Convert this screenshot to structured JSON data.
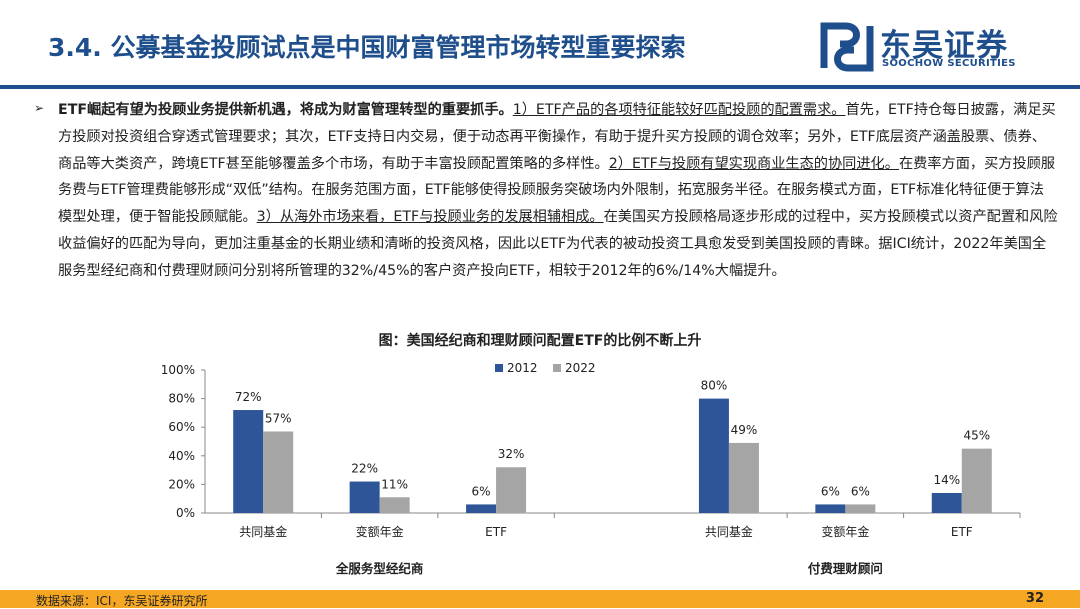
{
  "header": {
    "title": "3.4. 公募基金投顾试点是中国财富管理市场转型重要探索",
    "brand_cn": "东吴证券",
    "brand_en": "SOOCHOW SECURITIES"
  },
  "body": {
    "bullet": "➢",
    "p_lead": "ETF崛起有望为投顾业务提供新机遇，将成为财富管理转型的重要抓手。",
    "p_h1": "1）ETF产品的各项特征能较好匹配投顾的配置需求。",
    "p_t1": "首先，ETF持仓每日披露，满足买方投顾对投资组合穿透式管理要求；其次，ETF支持日内交易，便于动态再平衡操作，有助于提升买方投顾的调仓效率；另外，ETF底层资产涵盖股票、债券、商品等大类资产，跨境ETF甚至能够覆盖多个市场，有助于丰富投顾配置策略的多样性。",
    "p_h2": "2）ETF与投顾有望实现商业生态的协同进化。",
    "p_t2": "在费率方面，买方投顾服务费与ETF管理费能够形成“双低”结构。在服务范围方面，ETF能够使得投顾服务突破场内外限制，拓宽服务半径。在服务模式方面，ETF标准化特征便于算法模型处理，便于智能投顾赋能。",
    "p_h3": "3）从海外市场来看，ETF与投顾业务的发展相辅相成。",
    "p_t3": "在美国买方投顾格局逐步形成的过程中，买方投顾模式以资产配置和风险收益偏好的匹配为导向，更加注重基金的长期业绩和清晰的投资风格，因此以ETF为代表的被动投资工具愈发受到美国投顾的青睐。据ICI统计，2022年美国全服务型经纪商和付费理财顾问分别将所管理的32%/45%的客户资产投向ETF，相较于2012年的6%/14%大幅提升。"
  },
  "chart_data": {
    "type": "bar",
    "title": "图：美国经纪商和理财顾问配置ETF的比例不断上升",
    "ylim": [
      0,
      100
    ],
    "yticks": [
      "0%",
      "20%",
      "40%",
      "60%",
      "80%",
      "100%"
    ],
    "legend_position": "top-center",
    "groups": [
      {
        "name": "全服务型经纪商",
        "categories": [
          "共同基金",
          "变额年金",
          "ETF"
        ],
        "series": [
          {
            "name": "2012",
            "values": [
              72,
              22,
              6
            ],
            "labels": [
              "72%",
              "22%",
              "6%"
            ]
          },
          {
            "name": "2022",
            "values": [
              57,
              11,
              32
            ],
            "labels": [
              "57%",
              "11%",
              "32%"
            ]
          }
        ]
      },
      {
        "name": "付费理财顾问",
        "categories": [
          "共同基金",
          "变额年金",
          "ETF"
        ],
        "series": [
          {
            "name": "2012",
            "values": [
              80,
              6,
              14
            ],
            "labels": [
              "80%",
              "6%",
              "14%"
            ]
          },
          {
            "name": "2022",
            "values": [
              49,
              6,
              45
            ],
            "labels": [
              "49%",
              "6%",
              "45%"
            ]
          }
        ]
      }
    ],
    "colors": {
      "2012": "#2e5597",
      "2022": "#a5a5a5"
    }
  },
  "footer": {
    "source": "数据来源：ICI，东吴证券研究所",
    "page": "32"
  }
}
